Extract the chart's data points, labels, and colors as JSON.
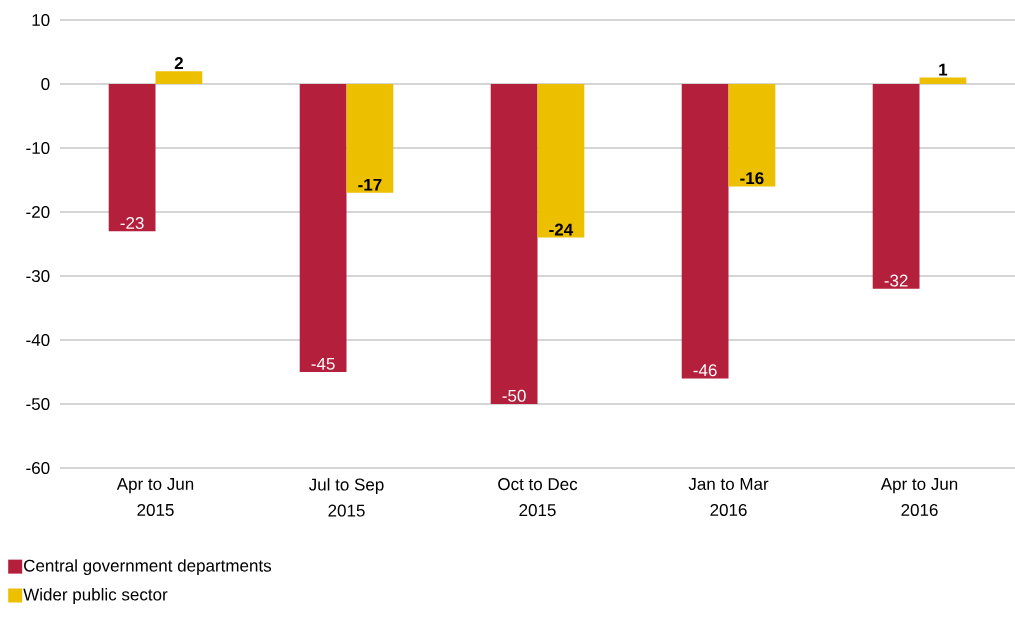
{
  "chart_data": {
    "type": "bar",
    "categories": [
      "Apr to Jun 2015",
      "Jul to Sep 2015",
      "Oct to Dec 2015",
      "Jan to Mar 2016",
      "Apr to Jun 2016"
    ],
    "series": [
      {
        "name": "Central government departments",
        "color": "#b41f3c",
        "values": [
          -23,
          -45,
          -50,
          -46,
          -32
        ],
        "value_labels": [
          "-23",
          "-45",
          "-50",
          "-46",
          "-32"
        ]
      },
      {
        "name": "Wider public sector",
        "color": "#ecbf00",
        "values": [
          2,
          -17,
          -24,
          -16,
          1
        ],
        "value_labels": [
          "2",
          "-17",
          "-24",
          "-16",
          "1"
        ]
      }
    ],
    "ylim": [
      -60,
      10
    ],
    "yticks": [
      10,
      0,
      -10,
      -20,
      -30,
      -40,
      -50,
      -60
    ],
    "grid": "y",
    "legend": "bottom left"
  }
}
